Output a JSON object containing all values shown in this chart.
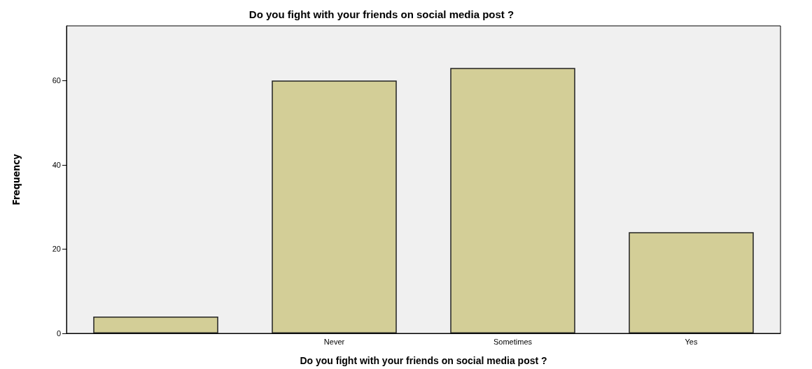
{
  "chart_data": {
    "type": "bar",
    "title": "Do you fight with your friends on social media post ?",
    "xlabel": "Do you fight with your friends on social media post ?",
    "ylabel": "Frequency",
    "categories": [
      null,
      "Never",
      "Sometimes",
      "Yes"
    ],
    "values": [
      4,
      60,
      63,
      24
    ],
    "color": "#d3ce97",
    "ylim": [
      0,
      73
    ],
    "yticks": [
      0,
      20,
      40,
      60
    ],
    "grid": false
  }
}
